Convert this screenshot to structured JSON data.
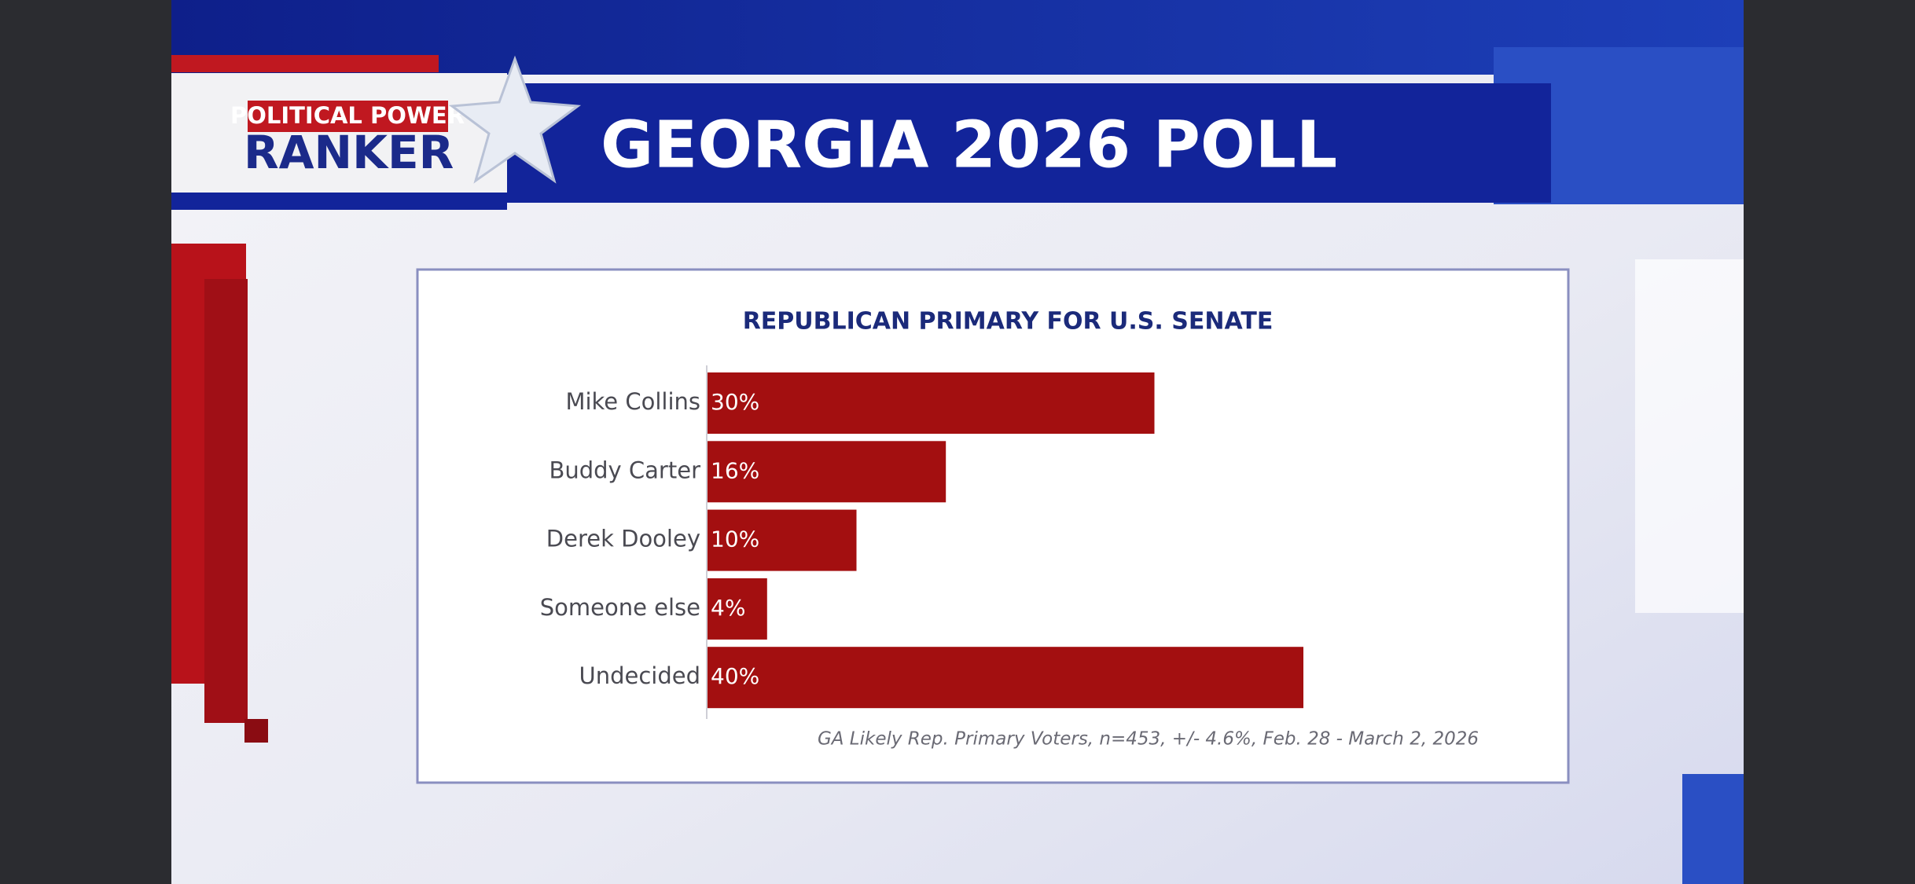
{
  "header": {
    "logo_top": "POLITICAL POWER",
    "logo_bottom": "RANKER",
    "title": "GEORGIA 2026 POLL"
  },
  "chart_data": {
    "type": "bar",
    "orientation": "horizontal",
    "title": "REPUBLICAN PRIMARY FOR U.S. SENATE",
    "categories": [
      "Mike Collins",
      "Buddy Carter",
      "Derek Dooley",
      "Someone else",
      "Undecided"
    ],
    "values": [
      30,
      16,
      10,
      4,
      40
    ],
    "value_labels": [
      "30%",
      "16%",
      "10%",
      "4%",
      "40%"
    ],
    "color": "#a30f10",
    "note": "GA Likely Rep. Primary Voters, n=453, +/- 4.6%, Feb. 28 - March 2, 2026"
  }
}
